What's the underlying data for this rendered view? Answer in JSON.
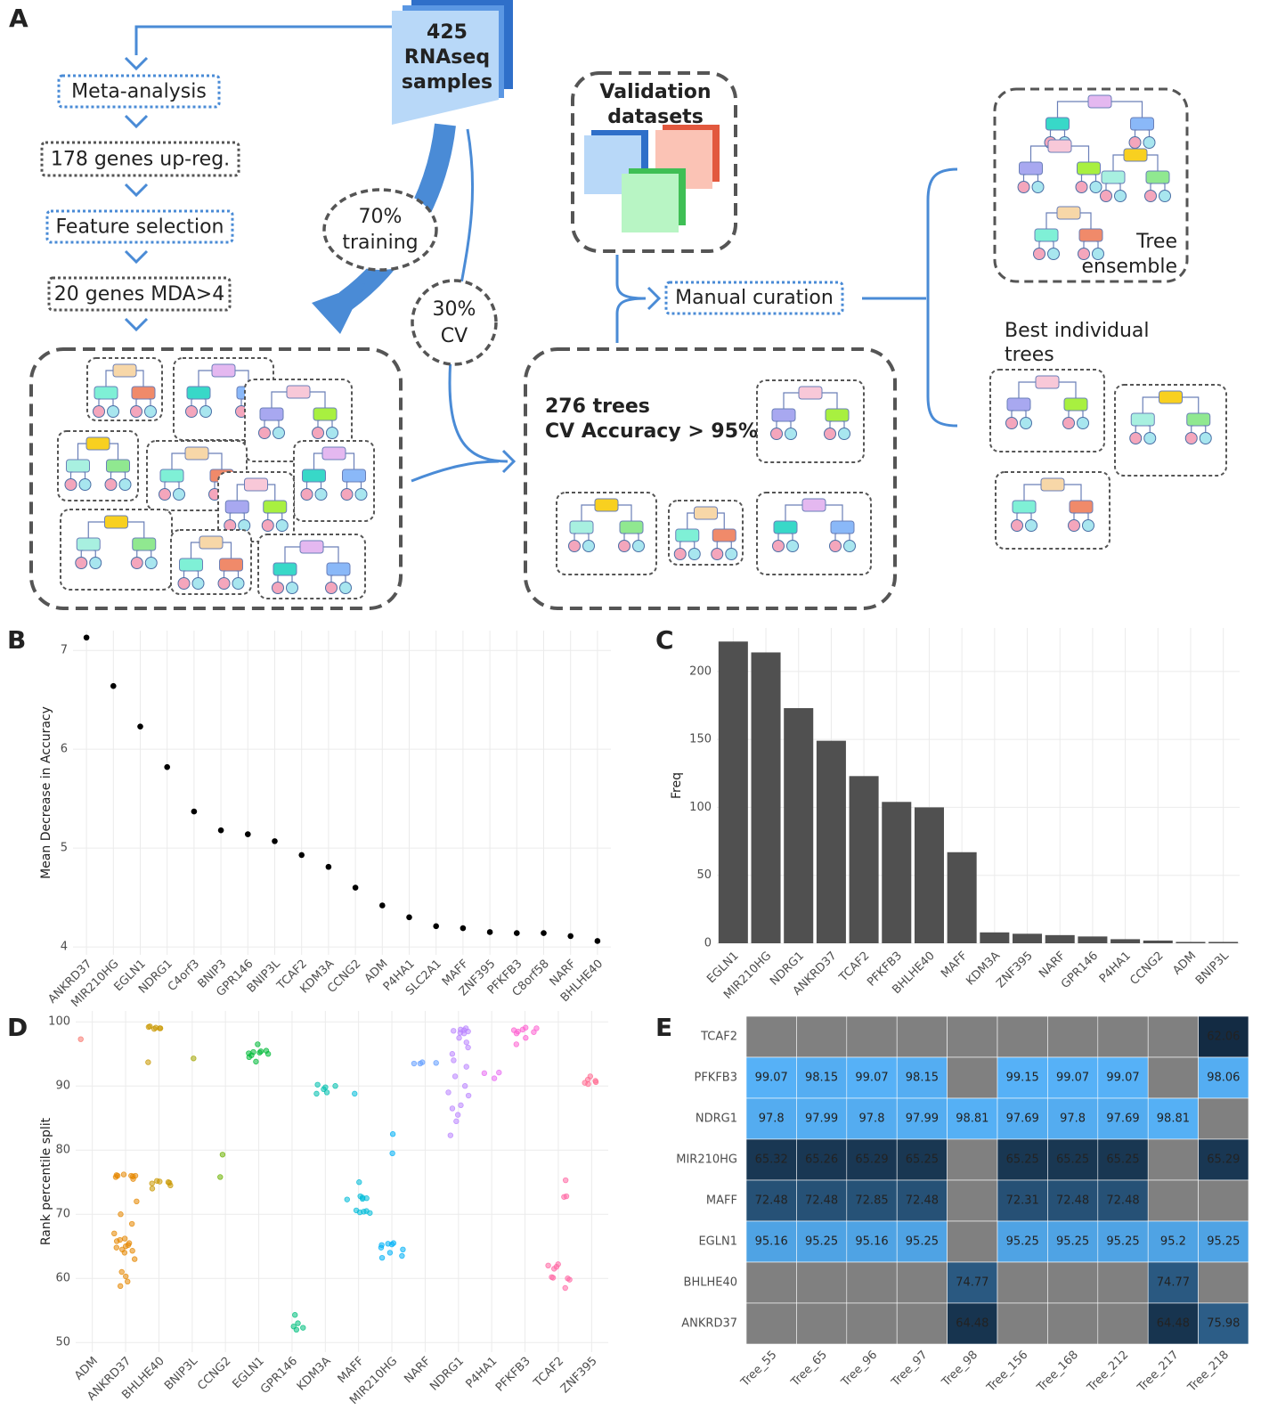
{
  "panel_labels": [
    "A",
    "B",
    "C",
    "D",
    "E"
  ],
  "diagram": {
    "samples": [
      "425",
      "RNAseq",
      "samples"
    ],
    "steps": [
      "Meta-analysis",
      "178 genes up-reg.",
      "Feature selection",
      "20 genes MDA>4"
    ],
    "training": [
      "70%",
      "training"
    ],
    "cv": [
      "30%",
      "CV"
    ],
    "validation": [
      "Validation",
      "datasets"
    ],
    "curation": "Manual curation",
    "selected": [
      "276 trees",
      "CV Accuracy > 95%"
    ],
    "ensemble": [
      "Tree",
      "ensemble"
    ],
    "best": [
      "Best individual",
      "trees"
    ]
  },
  "chart_data": [
    {
      "type": "dot",
      "ylabel": "Mean Decrease in Accuracy",
      "color": "#000000",
      "grid": true,
      "categories": [
        "ANKRD37",
        "MIR210HG",
        "EGLN1",
        "NDRG1",
        "C4orf3",
        "BNIP3",
        "GPR146",
        "BNIP3L",
        "TCAF2",
        "KDM3A",
        "CCNG2",
        "ADM",
        "P4HA1",
        "SLC2A1",
        "MAFF",
        "ZNF395",
        "PFKFB3",
        "C8orf58",
        "NARF",
        "BHLHE40"
      ],
      "values": [
        7.13,
        6.64,
        6.23,
        5.82,
        5.37,
        5.18,
        5.14,
        5.07,
        4.93,
        4.81,
        4.6,
        4.42,
        4.3,
        4.21,
        4.19,
        4.15,
        4.14,
        4.14,
        4.11,
        4.06
      ],
      "ylim": [
        3.92,
        7.2
      ],
      "yticks": [
        4,
        5,
        6,
        7
      ]
    },
    {
      "type": "bar",
      "ylabel": "Freq",
      "color": "#505050",
      "grid": true,
      "categories": [
        "EGLN1",
        "MIR210HG",
        "NDRG1",
        "ANKRD37",
        "TCAF2",
        "PFKFB3",
        "BHLHE40",
        "MAFF",
        "KDM3A",
        "ZNF395",
        "NARF",
        "GPR146",
        "P4HA1",
        "CCNG2",
        "ADM",
        "BNIP3L"
      ],
      "values": [
        222,
        214,
        173,
        149,
        123,
        104,
        100,
        67,
        8,
        7,
        6,
        5,
        3,
        2,
        1,
        1
      ],
      "ylim": [
        0,
        232
      ],
      "yticks": [
        0,
        50,
        100,
        150,
        200
      ]
    },
    {
      "type": "strip",
      "ylabel": "Rank percentile split",
      "grid": true,
      "ylim": [
        48.5,
        101.7
      ],
      "yticks": [
        50,
        60,
        70,
        80,
        90,
        100
      ],
      "series": [
        {
          "name": "ADM",
          "color": "#F8766D",
          "values": [
            97.3
          ]
        },
        {
          "name": "ANKRD37",
          "color": "#E58700",
          "values": [
            76,
            76,
            75.8,
            76.2,
            75.5,
            76,
            75.9,
            76.1,
            72,
            70,
            68.5,
            67,
            66,
            65.5,
            65,
            64.8,
            64.5,
            65.2,
            64,
            66.2,
            65.8,
            64.3,
            63,
            61,
            60.3,
            59.5,
            58.8
          ]
        },
        {
          "name": "BHLHE40",
          "color": "#C99800",
          "values": [
            99.2,
            99,
            99.1,
            98.9,
            99,
            99.3,
            93.7,
            75,
            74.8,
            75.2,
            74.5,
            74,
            75.1,
            74.9
          ]
        },
        {
          "name": "BNIP3L",
          "color": "#A3A500",
          "values": [
            94.3
          ]
        },
        {
          "name": "CCNG2",
          "color": "#6BB100",
          "values": [
            79.3,
            75.8
          ]
        },
        {
          "name": "EGLN1",
          "color": "#00BA38",
          "values": [
            96.5,
            95.5,
            95.2,
            95,
            95.3,
            94.8,
            94.5,
            93.8,
            95.1,
            95.4
          ]
        },
        {
          "name": "GPR146",
          "color": "#00BF7D",
          "values": [
            54.3,
            53,
            52.5,
            52,
            52.3
          ]
        },
        {
          "name": "KDM3A",
          "color": "#00C0AF",
          "values": [
            90.2,
            89.8,
            89,
            88.8,
            89.5,
            90
          ]
        },
        {
          "name": "MAFF",
          "color": "#00BCD8",
          "values": [
            88.8,
            75,
            72.8,
            72.5,
            72.3,
            72.6,
            72.4,
            70.5,
            70.3,
            70.6,
            70.4,
            70.2
          ]
        },
        {
          "name": "MIR210HG",
          "color": "#00B0F6",
          "values": [
            82.5,
            79.5,
            65.5,
            65.2,
            65.3,
            64.5,
            64,
            63.5,
            63.2,
            65.4,
            64.8
          ]
        },
        {
          "name": "NARF",
          "color": "#619CFF",
          "values": [
            93.6,
            93.5,
            93.7,
            93.5
          ]
        },
        {
          "name": "NDRG1",
          "color": "#B983FF",
          "values": [
            99,
            98.8,
            98.5,
            98.2,
            98.7,
            97.5,
            96.8,
            96,
            95,
            94,
            93,
            91.5,
            90,
            89,
            88.5,
            87,
            86.5,
            85.5,
            84.5,
            82.3,
            98.6,
            98.3
          ]
        },
        {
          "name": "P4HA1",
          "color": "#E76BF3",
          "values": [
            92,
            91.2,
            92.1
          ]
        },
        {
          "name": "PFKFB3",
          "color": "#FD61D1",
          "values": [
            99,
            98.8,
            98.5,
            98.2,
            98.7,
            99.1,
            98.4,
            97.5,
            96.5
          ]
        },
        {
          "name": "TCAF2",
          "color": "#FF67A4",
          "values": [
            75.3,
            72.8,
            72.7,
            62,
            61.8,
            61.5,
            62.2,
            60,
            60.2,
            59.8,
            60.1,
            58.5
          ]
        },
        {
          "name": "ZNF395",
          "color": "#FF6C91",
          "values": [
            91.5,
            91,
            90.8,
            90.5,
            90.3,
            90.6
          ]
        }
      ]
    },
    {
      "type": "heatmap",
      "color_low": "#132B43",
      "color_high": "#56B1F7",
      "null_color": "#808080",
      "rows": [
        "TCAF2",
        "PFKFB3",
        "NDRG1",
        "MIR210HG",
        "MAFF",
        "EGLN1",
        "BHLHE40",
        "ANKRD37"
      ],
      "columns": [
        "Tree_55",
        "Tree_65",
        "Tree_96",
        "Tree_97",
        "Tree_98",
        "Tree_156",
        "Tree_168",
        "Tree_212",
        "Tree_217",
        "Tree_218"
      ],
      "values": [
        [
          null,
          null,
          null,
          null,
          null,
          null,
          null,
          null,
          null,
          62.06
        ],
        [
          99.07,
          98.15,
          99.07,
          98.15,
          null,
          99.15,
          99.07,
          99.07,
          null,
          98.06
        ],
        [
          97.8,
          97.99,
          97.8,
          97.99,
          98.81,
          97.69,
          97.8,
          97.69,
          98.81,
          null
        ],
        [
          65.32,
          65.26,
          65.29,
          65.25,
          null,
          65.25,
          65.25,
          65.25,
          null,
          65.29
        ],
        [
          72.48,
          72.48,
          72.85,
          72.48,
          null,
          72.31,
          72.48,
          72.48,
          null,
          null
        ],
        [
          95.16,
          95.25,
          95.16,
          95.25,
          null,
          95.25,
          95.25,
          95.25,
          95.2,
          95.25
        ],
        [
          null,
          null,
          null,
          null,
          74.77,
          null,
          null,
          null,
          74.77,
          null
        ],
        [
          null,
          null,
          null,
          null,
          64.48,
          null,
          null,
          null,
          64.48,
          75.98
        ]
      ]
    }
  ]
}
